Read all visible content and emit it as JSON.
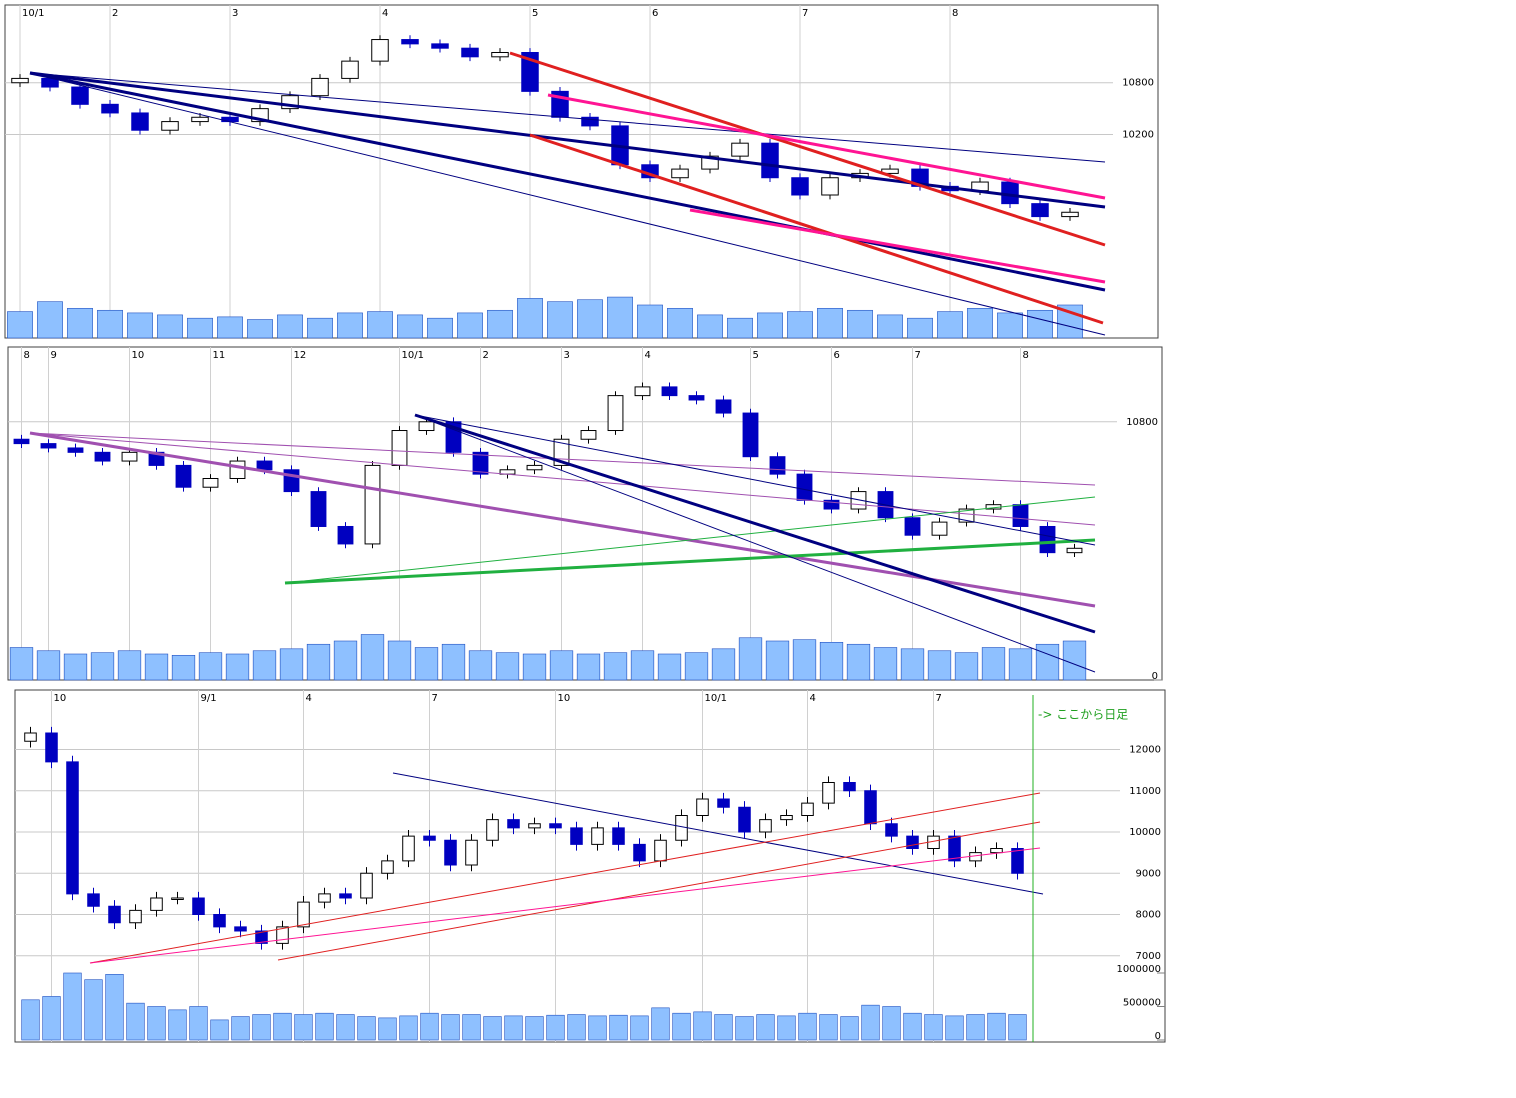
{
  "chart_data": [
    {
      "type": "candlestick",
      "categories": [
        "10/1",
        null,
        null,
        "2",
        null,
        null,
        null,
        "3",
        null,
        null,
        null,
        null,
        "4",
        null,
        null,
        null,
        null,
        "5",
        null,
        null,
        null,
        "6",
        null,
        null,
        null,
        null,
        "7",
        null,
        null,
        null,
        null,
        "8",
        null,
        null,
        null,
        null
      ],
      "open": [
        10800,
        10850,
        10750,
        10550,
        10450,
        10250,
        10350,
        10400,
        10350,
        10500,
        10650,
        10850,
        11050,
        11300,
        11250,
        11200,
        11100,
        11150,
        10700,
        10400,
        10300,
        9850,
        9700,
        9800,
        9950,
        10100,
        9700,
        9500,
        9700,
        9750,
        9800,
        9600,
        9550,
        9650,
        9400,
        9250
      ],
      "high": [
        10900,
        10900,
        10800,
        10600,
        10500,
        10400,
        10450,
        10450,
        10550,
        10700,
        10900,
        11100,
        11350,
        11350,
        11300,
        11250,
        11200,
        11200,
        10750,
        10450,
        10350,
        9900,
        9850,
        10000,
        10150,
        10150,
        9750,
        9750,
        9800,
        9850,
        9850,
        9650,
        9700,
        9700,
        9450,
        9350
      ],
      "low": [
        10750,
        10700,
        10500,
        10400,
        10200,
        10200,
        10300,
        10300,
        10300,
        10450,
        10600,
        10800,
        11000,
        11200,
        11150,
        11050,
        11050,
        10650,
        10350,
        10250,
        9800,
        9650,
        9650,
        9750,
        9900,
        9650,
        9450,
        9450,
        9650,
        9700,
        9550,
        9500,
        9500,
        9350,
        9200,
        9200
      ],
      "close": [
        10850,
        10750,
        10550,
        10450,
        10250,
        10350,
        10400,
        10350,
        10500,
        10650,
        10850,
        11050,
        11300,
        11250,
        11200,
        11100,
        11150,
        10700,
        10400,
        10300,
        9850,
        9700,
        9800,
        9950,
        10100,
        9700,
        9500,
        9700,
        9750,
        9800,
        9600,
        9550,
        9650,
        9400,
        9250,
        9300
      ],
      "volume": [
        40,
        55,
        45,
        42,
        38,
        35,
        30,
        32,
        28,
        35,
        30,
        38,
        40,
        35,
        30,
        38,
        42,
        60,
        55,
        58,
        62,
        50,
        45,
        35,
        30,
        38,
        40,
        45,
        42,
        35,
        30,
        40,
        45,
        38,
        42,
        50
      ],
      "ylim": [
        8400,
        11700
      ],
      "yticks": [
        10800,
        10200
      ],
      "volume_ylim": [
        0,
        100
      ],
      "up_color": "#ffffff",
      "down_color": "#0000c0",
      "volume_color": "#8ec0ff"
    },
    {
      "type": "candlestick",
      "categories": [
        "8",
        "9",
        null,
        null,
        "10",
        null,
        null,
        "11",
        null,
        null,
        "12",
        null,
        null,
        null,
        "10/1",
        null,
        null,
        "2",
        null,
        null,
        "3",
        null,
        null,
        "4",
        null,
        null,
        null,
        "5",
        null,
        null,
        "6",
        null,
        null,
        "7",
        null,
        null,
        null,
        "8",
        null,
        null
      ],
      "open": [
        10600,
        10550,
        10500,
        10450,
        10350,
        10450,
        10300,
        10050,
        10150,
        10350,
        10250,
        10000,
        9600,
        9400,
        10300,
        10700,
        10800,
        10450,
        10200,
        10250,
        10300,
        10600,
        10700,
        11100,
        11200,
        11100,
        11050,
        10900,
        10400,
        10200,
        9900,
        9800,
        10000,
        9700,
        9500,
        9650,
        9800,
        9850,
        9600,
        9300
      ],
      "high": [
        10650,
        10600,
        10550,
        10500,
        10500,
        10500,
        10350,
        10200,
        10400,
        10400,
        10300,
        10050,
        9650,
        10350,
        10750,
        10850,
        10850,
        10500,
        10300,
        10350,
        10650,
        10750,
        11150,
        11250,
        11250,
        11150,
        11100,
        10950,
        10450,
        10250,
        9950,
        10050,
        10050,
        9750,
        9700,
        9850,
        9900,
        9900,
        9650,
        9400
      ],
      "low": [
        10500,
        10450,
        10400,
        10300,
        10300,
        10250,
        10000,
        10000,
        10100,
        10200,
        9950,
        9550,
        9350,
        9350,
        10250,
        10650,
        10400,
        10150,
        10150,
        10200,
        10250,
        10550,
        10650,
        11050,
        11050,
        11000,
        10850,
        10350,
        10150,
        9850,
        9750,
        9750,
        9650,
        9450,
        9450,
        9600,
        9750,
        9550,
        9250,
        9250
      ],
      "close": [
        10550,
        10500,
        10450,
        10350,
        10450,
        10300,
        10050,
        10150,
        10350,
        10250,
        10000,
        9600,
        9400,
        10300,
        10700,
        10800,
        10450,
        10200,
        10250,
        10300,
        10600,
        10700,
        11100,
        11200,
        11100,
        11050,
        10900,
        10400,
        10200,
        9900,
        9800,
        10000,
        9700,
        9500,
        9650,
        9800,
        9850,
        9600,
        9300,
        9350
      ],
      "volume": [
        50,
        45,
        40,
        42,
        45,
        40,
        38,
        42,
        40,
        45,
        48,
        55,
        60,
        70,
        60,
        50,
        55,
        45,
        42,
        40,
        45,
        40,
        42,
        45,
        40,
        42,
        48,
        65,
        60,
        62,
        58,
        55,
        50,
        48,
        45,
        42,
        50,
        48,
        55,
        60
      ],
      "ylim": [
        8700,
        11600
      ],
      "yticks": [
        10800
      ],
      "volume_ylim": [
        0,
        100
      ],
      "volume_yticks": [
        0
      ],
      "up_color": "#ffffff",
      "down_color": "#0000c0",
      "volume_color": "#8ec0ff"
    },
    {
      "type": "candlestick",
      "categories": [
        null,
        "10",
        null,
        null,
        null,
        null,
        null,
        null,
        "9/1",
        null,
        null,
        null,
        null,
        "4",
        null,
        null,
        null,
        null,
        null,
        "7",
        null,
        null,
        null,
        null,
        null,
        "10",
        null,
        null,
        null,
        null,
        null,
        null,
        "10/1",
        null,
        null,
        null,
        null,
        "4",
        null,
        null,
        null,
        null,
        null,
        "7",
        null,
        null,
        null,
        null
      ],
      "open": [
        12200,
        12400,
        11700,
        8500,
        8200,
        7800,
        8100,
        8400,
        8400,
        8000,
        7700,
        7600,
        7300,
        7700,
        8300,
        8500,
        8400,
        9000,
        9300,
        9900,
        9800,
        9200,
        9800,
        10300,
        10100,
        10200,
        10100,
        9700,
        10100,
        9700,
        9300,
        9800,
        10400,
        10800,
        10600,
        10000,
        10300,
        10400,
        10700,
        11200,
        11000,
        10200,
        9900,
        9600,
        9900,
        9300,
        9500,
        9600
      ],
      "high": [
        12550,
        12550,
        11850,
        8650,
        8350,
        8250,
        8550,
        8550,
        8550,
        8150,
        7850,
        7750,
        7850,
        8450,
        8650,
        8650,
        9150,
        9450,
        10050,
        10050,
        9950,
        9950,
        10450,
        10450,
        10350,
        10350,
        10250,
        10250,
        10250,
        9850,
        9950,
        10550,
        10950,
        10950,
        10750,
        10450,
        10550,
        10850,
        11350,
        11350,
        11150,
        10350,
        10050,
        10050,
        10050,
        9650,
        9750,
        9750
      ],
      "low": [
        12050,
        11550,
        8350,
        8050,
        7650,
        7650,
        7950,
        8250,
        7850,
        7550,
        7450,
        7150,
        7150,
        7550,
        8150,
        8250,
        8250,
        8850,
        9150,
        9650,
        9050,
        9050,
        9650,
        9950,
        9950,
        9950,
        9550,
        9550,
        9550,
        9150,
        9150,
        9650,
        10250,
        10450,
        9850,
        9850,
        10150,
        10250,
        10550,
        10850,
        10050,
        9750,
        9450,
        9450,
        9150,
        9150,
        9350,
        8850
      ],
      "close": [
        12400,
        11700,
        8500,
        8200,
        7800,
        8100,
        8400,
        8400,
        8000,
        7700,
        7600,
        7300,
        7700,
        8300,
        8500,
        8400,
        9000,
        9300,
        9900,
        9800,
        9200,
        9800,
        10300,
        10100,
        10200,
        10100,
        9700,
        10100,
        9700,
        9300,
        9800,
        10400,
        10800,
        10600,
        10000,
        10300,
        10400,
        10700,
        11200,
        11000,
        10200,
        9900,
        9600,
        9900,
        9300,
        9500,
        9600,
        9000
      ],
      "volume": [
        600000,
        650000,
        1000000,
        900000,
        980000,
        550000,
        500000,
        450000,
        500000,
        300000,
        350000,
        380000,
        400000,
        380000,
        400000,
        380000,
        350000,
        330000,
        360000,
        400000,
        380000,
        380000,
        350000,
        360000,
        350000,
        370000,
        380000,
        360000,
        370000,
        360000,
        480000,
        400000,
        420000,
        380000,
        350000,
        380000,
        360000,
        400000,
        380000,
        350000,
        520000,
        500000,
        400000,
        380000,
        360000,
        380000,
        400000,
        380000
      ],
      "ylim": [
        6800,
        13200
      ],
      "yticks": [
        12000,
        11000,
        10000,
        9000,
        8000,
        7000
      ],
      "volume_ylim": [
        0,
        1000000
      ],
      "volume_yticks": [
        1000000,
        500000,
        0
      ],
      "annotation": "-> ここから日足",
      "up_color": "#ffffff",
      "down_color": "#0000c0",
      "volume_color": "#8ec0ff"
    }
  ]
}
